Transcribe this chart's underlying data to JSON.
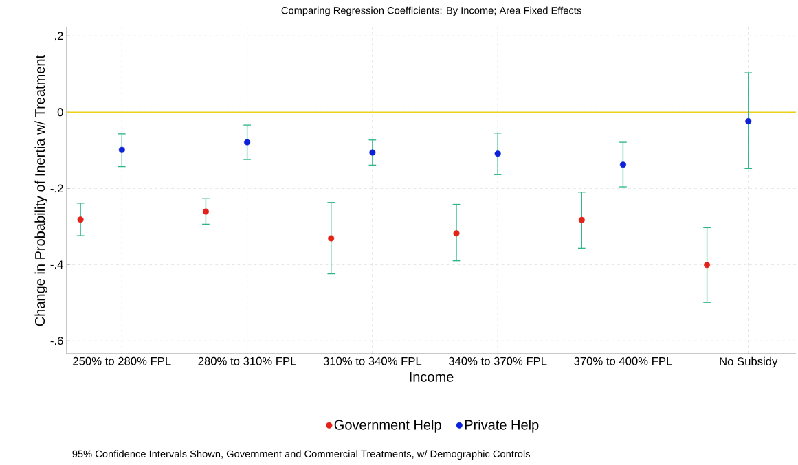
{
  "chart_data": {
    "type": "scatter",
    "title": "Comparing Regression Coefficients: By Income; Area Fixed Effects",
    "xlabel": "Income",
    "ylabel": "Change in Probability of Inertia w/ Treatment",
    "annotations": [
      "95% Confidence Intervals Shown, Government and Commercial Treatments, w/ Demographic Controls"
    ],
    "categories": [
      "250% to 280% FPL",
      "280% to 310% FPL",
      "310% to 340% FPL",
      "340% to 370% FPL",
      "370% to 400% FPL",
      "No Subsidy"
    ],
    "ylim": [
      -0.634,
      0.222
    ],
    "yticks": [
      {
        "value": 0.2,
        "label": ".2"
      },
      {
        "value": 0,
        "label": "0"
      },
      {
        "value": -0.2,
        "label": "-.2"
      },
      {
        "value": -0.4,
        "label": "-.4"
      },
      {
        "value": -0.6,
        "label": "-.6"
      }
    ],
    "grid": true,
    "legend": "bottom",
    "marker": "circle",
    "ref_lines": [
      {
        "axis": "y",
        "value": 0,
        "color": "#ecd21c"
      }
    ],
    "series": [
      {
        "name": "Government Help",
        "color": "#e32219",
        "values": [
          -0.282,
          -0.261,
          -0.331,
          -0.318,
          -0.283,
          -0.401
        ],
        "errors": [
          [
            -0.324,
            -0.239
          ],
          [
            -0.294,
            -0.227
          ],
          [
            -0.424,
            -0.237
          ],
          [
            -0.39,
            -0.242
          ],
          [
            -0.357,
            -0.21
          ],
          [
            -0.499,
            -0.303
          ]
        ]
      },
      {
        "name": "Private Help",
        "color": "#0b22d8",
        "values": [
          -0.099,
          -0.079,
          -0.106,
          -0.109,
          -0.138,
          -0.024
        ],
        "errors": [
          [
            -0.143,
            -0.057
          ],
          [
            -0.124,
            -0.034
          ],
          [
            -0.139,
            -0.073
          ],
          [
            -0.164,
            -0.055
          ],
          [
            -0.196,
            -0.079
          ],
          [
            -0.148,
            0.103
          ]
        ]
      }
    ]
  }
}
